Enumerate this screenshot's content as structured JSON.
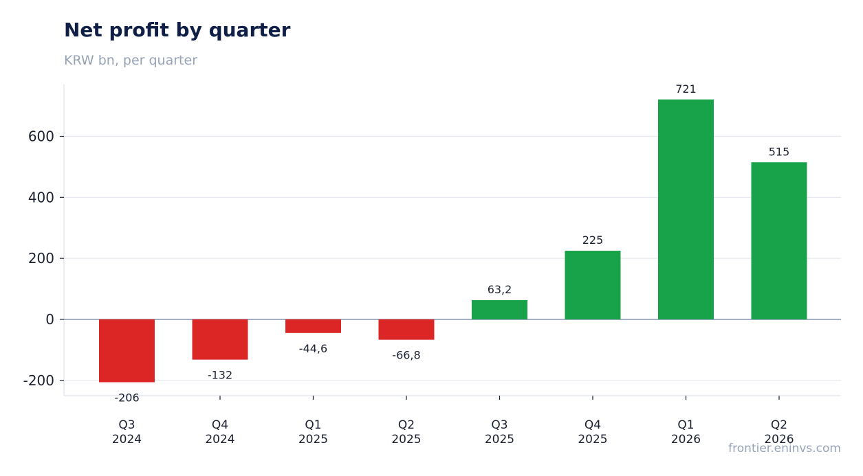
{
  "chart_data": {
    "type": "bar",
    "title": "Net profit by quarter",
    "subtitle": "KRW bn, per quarter",
    "categories": [
      [
        "Q3",
        "2024"
      ],
      [
        "Q4",
        "2024"
      ],
      [
        "Q1",
        "2025"
      ],
      [
        "Q2",
        "2025"
      ],
      [
        "Q3",
        "2025"
      ],
      [
        "Q4",
        "2025"
      ],
      [
        "Q1",
        "2026"
      ],
      [
        "Q2",
        "2026"
      ]
    ],
    "values": [
      -206,
      -132,
      -44.6,
      -66.8,
      63.2,
      225,
      721,
      515
    ],
    "value_labels": [
      "-206",
      "-132",
      "-44,6",
      "-66,8",
      "63,2",
      "225",
      "721",
      "515"
    ],
    "ylim": [
      -250,
      770
    ],
    "yticks": [
      -200,
      0,
      200,
      400,
      600
    ],
    "ytick_labels": [
      "-200",
      "0",
      "200",
      "400",
      "600"
    ],
    "grid": true,
    "colors": {
      "positive": "#18a34a",
      "negative": "#dc2626",
      "grid": "#e3e7ee",
      "zero_line": "#94a3b8",
      "axis": "#e3e7ee"
    },
    "source": "frontier.eninvs.com"
  }
}
